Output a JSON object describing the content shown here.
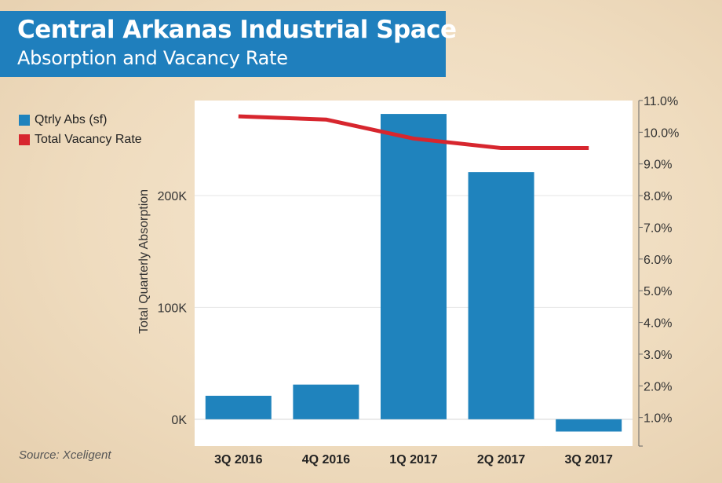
{
  "header": {
    "title": "Central Arkanas Industrial Space",
    "subtitle": "Absorption and Vacancy Rate"
  },
  "legend": {
    "items": [
      {
        "label": "Qtrly Abs (sf)",
        "color": "#1f83bd"
      },
      {
        "label": "Total Vacancy Rate",
        "color": "#d7262e"
      }
    ]
  },
  "source": "Source: Xceligent",
  "chart_data": {
    "type": "bar",
    "categories": [
      "3Q 2016",
      "4Q 2016",
      "1Q 2017",
      "2Q 2017",
      "3Q 2017"
    ],
    "series": [
      {
        "name": "Qtrly Abs (sf)",
        "type": "bar",
        "axis": "left",
        "color": "#1f83bd",
        "values": [
          21000,
          31000,
          273000,
          221000,
          -11000
        ]
      },
      {
        "name": "Total Vacancy Rate",
        "type": "line",
        "axis": "right",
        "color": "#d7262e",
        "values": [
          10.5,
          10.4,
          9.8,
          9.5,
          9.5
        ]
      }
    ],
    "ylabel": "Total Quarterly Absorption",
    "y_left": {
      "lim": [
        -24000,
        285000
      ],
      "ticks": [
        0,
        100000,
        200000
      ],
      "tick_labels": [
        "0K",
        "100K",
        "200K"
      ]
    },
    "y_right": {
      "lim": [
        0.1,
        11.0
      ],
      "ticks": [
        1,
        2,
        3,
        4,
        5,
        6,
        7,
        8,
        9,
        10,
        11
      ],
      "tick_labels": [
        "1.0%",
        "2.0%",
        "3.0%",
        "4.0%",
        "5.0%",
        "6.0%",
        "7.0%",
        "8.0%",
        "9.0%",
        "10.0%",
        "11.0%"
      ]
    },
    "grid": true,
    "legend_position": "top-left"
  }
}
